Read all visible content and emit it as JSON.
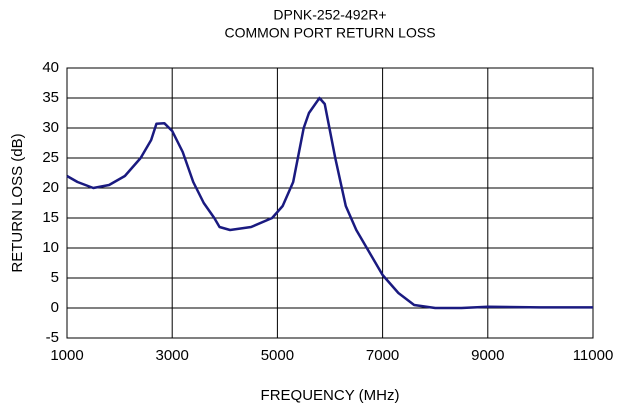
{
  "chart_data": {
    "type": "line",
    "title": "DPNK-252-492R+",
    "subtitle": "COMMON PORT RETURN LOSS",
    "x_label": "FREQUENCY (MHz)",
    "y_label": "RETURN LOSS (dB)",
    "x": [
      1000,
      1200,
      1500,
      1800,
      2100,
      2400,
      2600,
      2700,
      2850,
      3000,
      3200,
      3400,
      3600,
      3800,
      3900,
      4100,
      4500,
      4900,
      5100,
      5300,
      5500,
      5600,
      5800,
      5900,
      6100,
      6300,
      6500,
      6800,
      7000,
      7300,
      7600,
      8000,
      8500,
      9000,
      10000,
      11000
    ],
    "series": [
      {
        "name": "Return Loss",
        "color": "#1a1a80",
        "values": [
          22,
          21,
          20,
          20.5,
          22,
          25,
          28,
          30.7,
          30.8,
          29.5,
          26,
          21,
          17.5,
          15,
          13.5,
          13,
          13.5,
          15,
          17,
          21,
          30,
          32.5,
          35,
          34,
          25,
          17,
          13,
          8.5,
          5.5,
          2.5,
          0.5,
          0,
          0,
          0.2,
          0.1,
          0.1
        ]
      }
    ],
    "xlim": [
      1000,
      11000
    ],
    "xticks": [
      1000,
      3000,
      5000,
      7000,
      9000,
      11000
    ],
    "ylim": [
      -5,
      40
    ],
    "yticks": [
      -5,
      0,
      5,
      10,
      15,
      20,
      25,
      30,
      35,
      40
    ],
    "grid": true
  }
}
